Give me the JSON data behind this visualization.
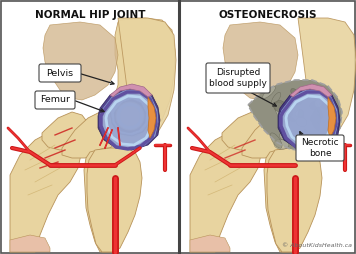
{
  "bg_color": "#e8e8e8",
  "panel_bg": "#ffffff",
  "border_color": "#555555",
  "divider_color": "#444444",
  "title_left": "NORMAL HIP JOINT",
  "title_right": "OSTEONECROSIS",
  "title_fontsize": 7.5,
  "title_color": "#111111",
  "label_pelvis": "Pelvis",
  "label_femur": "Femur",
  "label_disrupted": "Disrupted\nblood supply",
  "label_necrotic": "Necrotic\nbone",
  "copyright": "© AboutKidsHealth.ca",
  "bone_light": "#e8d4a0",
  "bone_mid": "#d4b878",
  "bone_dark": "#b8935a",
  "bone_shadow": "#a07840",
  "socket_dark": "#3a2010",
  "cartilage_light": "#b8d4f0",
  "cartilage_mid": "#8ab0e0",
  "cartilage_dark": "#5878c0",
  "purple_dark": "#403080",
  "purple_mid": "#6050a0",
  "orange_accent": "#e89040",
  "synovial_pink": "#d090b0",
  "blood_red": "#cc1818",
  "blood_bright": "#ee3333",
  "necrosis_gray": "#909080",
  "necrosis_dark": "#686858",
  "necrosis_light": "#b0b0a0",
  "label_bg": "#ffffff",
  "label_edge": "#444444",
  "arrow_color": "#222222",
  "femur_lower_pink": "#e0b8a8"
}
